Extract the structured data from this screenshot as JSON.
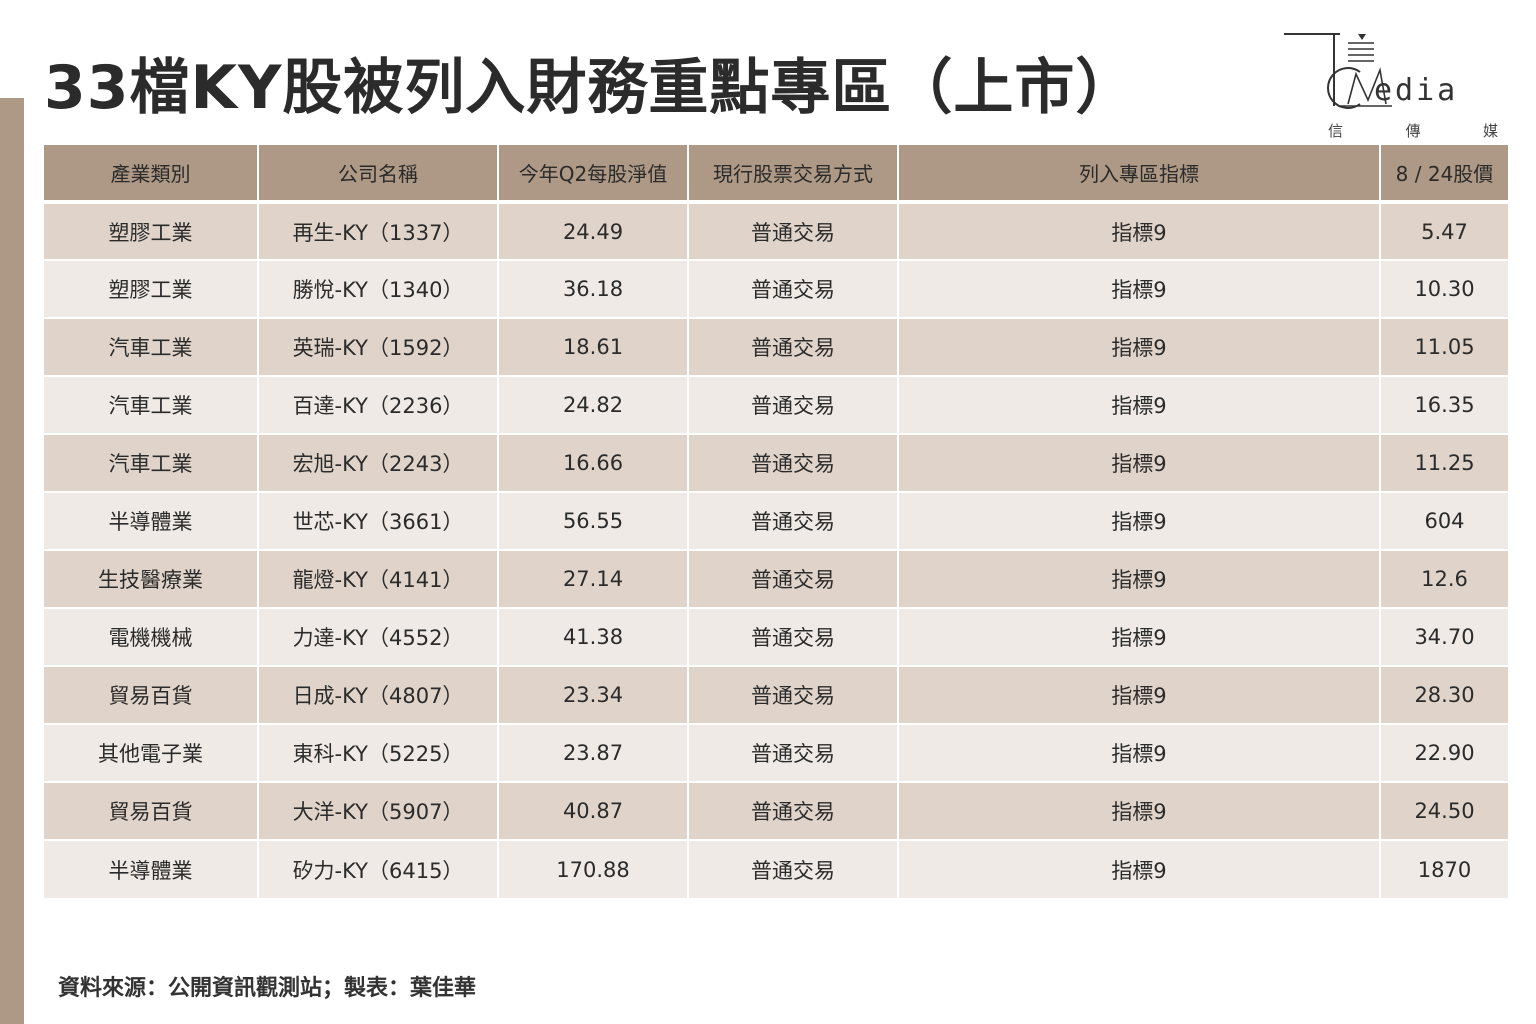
{
  "title": "33檔KY股被列入財務重點專區（上市）",
  "logo": {
    "word": "edia",
    "sub": [
      "信",
      "傳",
      "媒"
    ]
  },
  "table": {
    "headers": [
      "產業類別",
      "公司名稱",
      "今年Q2每股淨值",
      "現行股票交易方式",
      "列入專區指標",
      "8 / 24股價"
    ],
    "rows": [
      [
        "塑膠工業",
        "再生-KY（1337）",
        "24.49",
        "普通交易",
        "指標9",
        "5.47"
      ],
      [
        "塑膠工業",
        "勝悅-KY（1340）",
        "36.18",
        "普通交易",
        "指標9",
        "10.30"
      ],
      [
        "汽車工業",
        "英瑞-KY（1592）",
        "18.61",
        "普通交易",
        "指標9",
        "11.05"
      ],
      [
        "汽車工業",
        "百達-KY（2236）",
        "24.82",
        "普通交易",
        "指標9",
        "16.35"
      ],
      [
        "汽車工業",
        "宏旭-KY（2243）",
        "16.66",
        "普通交易",
        "指標9",
        "11.25"
      ],
      [
        "半導體業",
        "世芯-KY（3661）",
        "56.55",
        "普通交易",
        "指標9",
        "604"
      ],
      [
        "生技醫療業",
        "龍燈-KY（4141）",
        "27.14",
        "普通交易",
        "指標9",
        "12.6"
      ],
      [
        "電機機械",
        "力達-KY（4552）",
        "41.38",
        "普通交易",
        "指標9",
        "34.70"
      ],
      [
        "貿易百貨",
        "日成-KY（4807）",
        "23.34",
        "普通交易",
        "指標9",
        "28.30"
      ],
      [
        "其他電子業",
        "東科-KY（5225）",
        "23.87",
        "普通交易",
        "指標9",
        "22.90"
      ],
      [
        "貿易百貨",
        "大洋-KY（5907）",
        "40.87",
        "普通交易",
        "指標9",
        "24.50"
      ],
      [
        "半導體業",
        "矽力-KY（6415）",
        "170.88",
        "普通交易",
        "指標9",
        "1870"
      ]
    ]
  },
  "source": "資料來源：公開資訊觀測站；製表：葉佳華",
  "colors": {
    "accent": "#ad9985",
    "row_dark": "#e0d4ca",
    "row_light": "#efeae5"
  }
}
